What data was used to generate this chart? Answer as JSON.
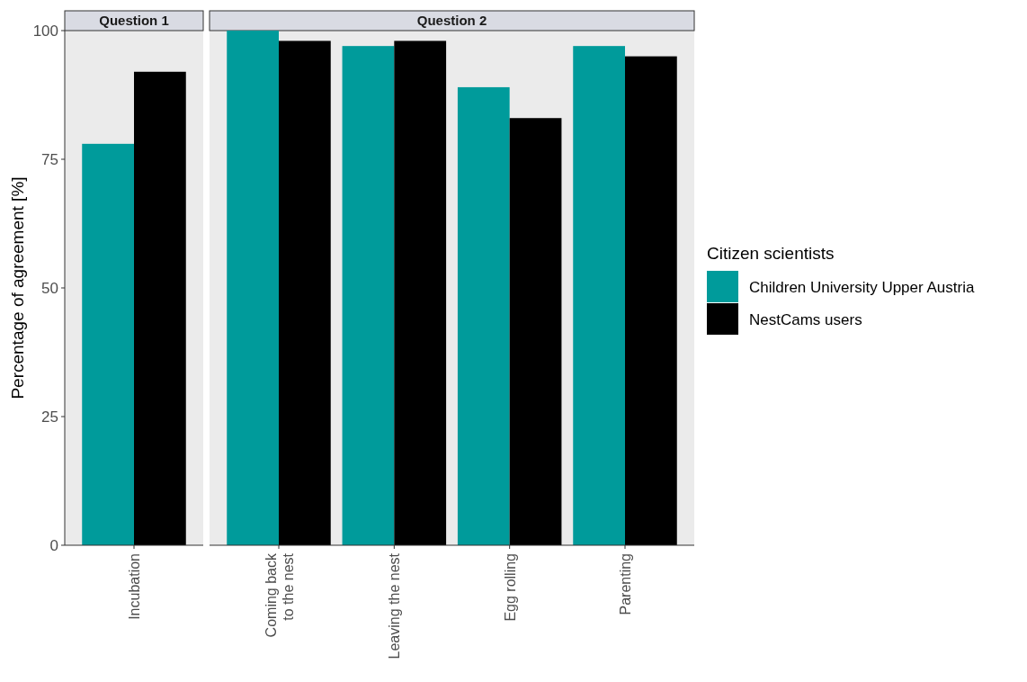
{
  "chart_data": [
    {
      "type": "bar",
      "title": "Question 1",
      "ylabel": "Percentage of agreement [%]",
      "categories": [
        "Incubation"
      ],
      "ylim": [
        0,
        100
      ],
      "yticks": [
        0,
        25,
        50,
        75,
        100
      ],
      "series": [
        {
          "color": "#009b9b",
          "values": [
            78
          ]
        },
        {
          "color": "#000000",
          "values": [
            92
          ]
        }
      ]
    },
    {
      "type": "bar",
      "title": "Question 2",
      "categories": [
        "Coming back\nto the nest",
        "Leaving the nest",
        "Egg rolling",
        "Parenting"
      ],
      "ylim": [
        0,
        100
      ],
      "tick_labels": "x",
      "legend": "right",
      "legend_title": "Citizen scientists",
      "series": [
        {
          "name": "Children University Upper Austria",
          "color": "#009b9b",
          "values": [
            100,
            97,
            89,
            97
          ]
        },
        {
          "name": "NestCams users",
          "color": "#000000",
          "values": [
            98,
            98,
            83,
            95
          ]
        }
      ]
    }
  ]
}
